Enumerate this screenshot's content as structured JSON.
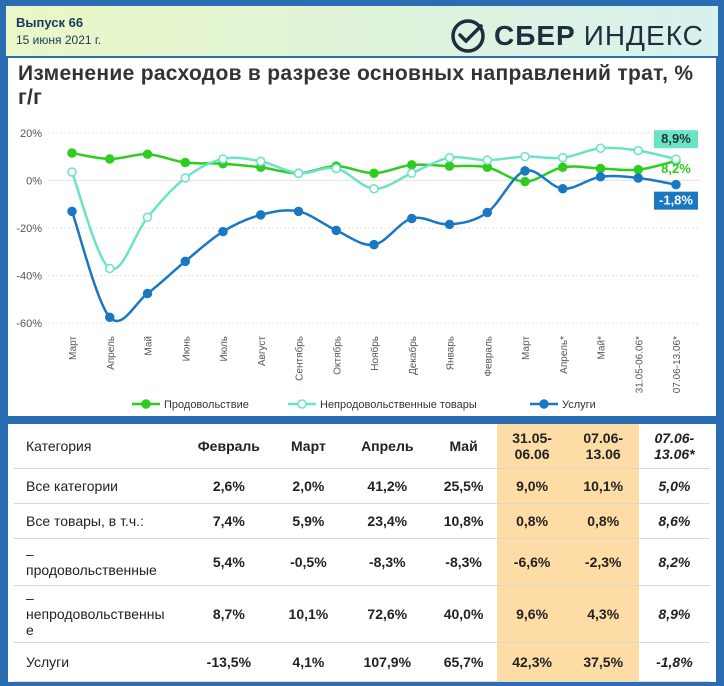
{
  "header": {
    "issue": "Выпуск 66",
    "date": "15 июня 2021 г.",
    "brand": "СБЕР",
    "brand_suffix": "ИНДЕКС"
  },
  "chart_data": {
    "type": "line",
    "title": "Изменение расходов в разрезе основных направлений трат, % г/г",
    "categories": [
      "Март",
      "Апрель",
      "Май",
      "Июнь",
      "Июль",
      "Август",
      "Сентябрь",
      "Октябрь",
      "Ноябрь",
      "Декабрь",
      "Январь",
      "Февраль",
      "Март",
      "Апрель*",
      "Май*",
      "31.05-06.06*",
      "07.06-13.06*"
    ],
    "yticks": [
      "20%",
      "0%",
      "-20%",
      "-40%",
      "-60%"
    ],
    "ytick_values": [
      20,
      0,
      -20,
      -40,
      -60
    ],
    "ylim": [
      -62,
      22
    ],
    "series": [
      {
        "name": "Продовольствие",
        "color": "#2ecc1f",
        "values": [
          11.5,
          9,
          11,
          7.5,
          7,
          5.5,
          3,
          6,
          3,
          6.5,
          6,
          5.5,
          -0.5,
          5.5,
          5,
          4.5,
          8.2
        ]
      },
      {
        "name": "Непродовольственные товары",
        "color": "#6be3c6",
        "values": [
          3.5,
          -37,
          -15.5,
          1,
          9,
          8,
          3,
          5,
          -3.5,
          3,
          9.5,
          8.5,
          10,
          9.5,
          13.5,
          12.5,
          8.9
        ]
      },
      {
        "name": "Услуги",
        "color": "#1a78c2",
        "values": [
          -13,
          -57.5,
          -47.5,
          -34,
          -21.5,
          -14.5,
          -13,
          -21,
          -27,
          -16,
          -18.5,
          -13.5,
          4,
          -3.5,
          1.5,
          1,
          -1.8
        ]
      }
    ],
    "end_labels": [
      "8,9%",
      "8,2%",
      "-1,8%"
    ]
  },
  "table": {
    "headers": [
      "Категория",
      "Февраль",
      "Март",
      "Апрель",
      "Май",
      "31.05-06.06",
      "07.06-13.06",
      "07.06-13.06*"
    ],
    "header_lines": [
      [
        "Категория"
      ],
      [
        "Февраль"
      ],
      [
        "Март"
      ],
      [
        "Апрель"
      ],
      [
        "Май"
      ],
      [
        "31.05-",
        "06.06"
      ],
      [
        "07.06-",
        "13.06"
      ],
      [
        "07.06-",
        "13.06*"
      ]
    ],
    "rows": [
      {
        "cells": [
          "Все категории",
          "2,6%",
          "2,0%",
          "41,2%",
          "25,5%",
          "9,0%",
          "10,1%",
          "5,0%"
        ]
      },
      {
        "cells": [
          "Все товары, в т.ч.:",
          "7,4%",
          "5,9%",
          "23,4%",
          "10,8%",
          "0,8%",
          "0,8%",
          "8,6%"
        ]
      },
      {
        "cells": [
          "–\nпродовольственные",
          "5,4%",
          "-0,5%",
          "-8,3%",
          "-8,3%",
          "-6,6%",
          "-2,3%",
          "8,2%"
        ]
      },
      {
        "cells": [
          "–\nнепродовольственны\nе",
          "8,7%",
          "10,1%",
          "72,6%",
          "40,0%",
          "9,6%",
          "4,3%",
          "8,9%"
        ]
      },
      {
        "cells": [
          "Услуги",
          "-13,5%",
          "4,1%",
          "107,9%",
          "65,7%",
          "42,3%",
          "37,5%",
          "-1,8%"
        ]
      }
    ]
  }
}
